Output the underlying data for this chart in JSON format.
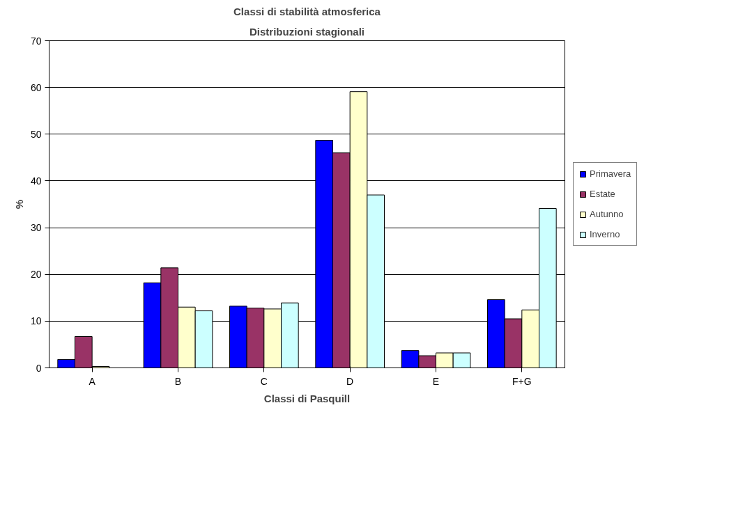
{
  "chart_data": {
    "type": "bar",
    "title": "Classi di stabilità atmosferica",
    "subtitle": "Distribuzioni stagionali",
    "xlabel": "Classi di Pasquill",
    "ylabel": "%",
    "categories": [
      "A",
      "B",
      "C",
      "D",
      "E",
      "F+G"
    ],
    "series": [
      {
        "name": "Primavera",
        "color": "#0000ff",
        "values": [
          1.8,
          18.2,
          13.2,
          48.7,
          3.7,
          14.6
        ]
      },
      {
        "name": "Estate",
        "color": "#993366",
        "values": [
          6.7,
          21.4,
          12.8,
          46,
          2.6,
          10.5
        ]
      },
      {
        "name": "Autunno",
        "color": "#ffffcc",
        "values": [
          0.3,
          13,
          12.6,
          59.1,
          3.2,
          12.4
        ]
      },
      {
        "name": "Inverno",
        "color": "#ccffff",
        "values": [
          null,
          12.2,
          13.9,
          37,
          3.2,
          34.1
        ]
      }
    ],
    "ylim": [
      0,
      70
    ],
    "yticks": [
      0,
      10,
      20,
      30,
      40,
      50,
      60,
      70
    ],
    "grid": "y",
    "legend": "right"
  }
}
